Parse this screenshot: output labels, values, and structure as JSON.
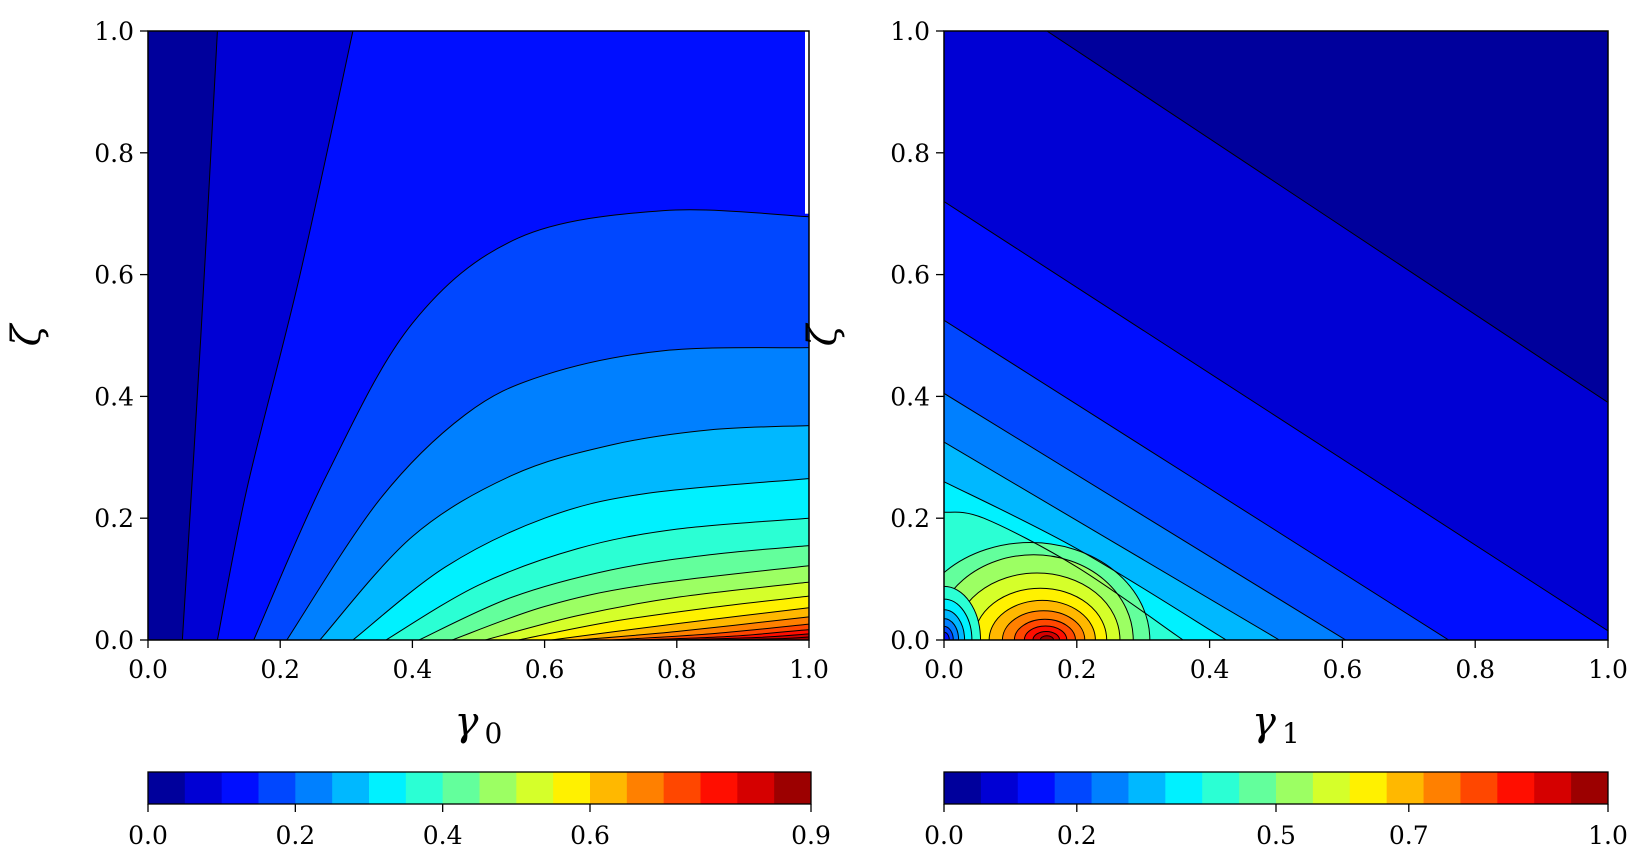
{
  "chart_data": [
    {
      "type": "contourf",
      "colormap": "jet",
      "xlabel": "γ",
      "xlabel_subscript": "0",
      "ylabel": "ζ",
      "xlim": [
        0.0,
        1.0
      ],
      "ylim": [
        0.0,
        1.0
      ],
      "xticks": [
        "0.0",
        "0.2",
        "0.4",
        "0.6",
        "0.8",
        "1.0"
      ],
      "yticks": [
        "0.0",
        "0.2",
        "0.4",
        "0.6",
        "0.8",
        "1.0"
      ],
      "colorbar": {
        "orientation": "horizontal",
        "min": 0.0,
        "max": 0.9,
        "levels": 18,
        "ticks": [
          "0.0",
          "0.2",
          "0.4",
          "0.6",
          "0.9"
        ]
      },
      "contours": [
        {
          "level": 0.05,
          "points": [
            [
              0.052,
              0.0
            ],
            [
              0.08,
              0.5
            ],
            [
              0.105,
              1.0
            ]
          ]
        },
        {
          "level": 0.1,
          "points": [
            [
              0.105,
              0.0
            ],
            [
              0.15,
              0.25
            ],
            [
              0.23,
              0.6
            ],
            [
              0.31,
              1.0
            ]
          ]
        },
        {
          "level": 0.15,
          "points": [
            [
              0.16,
              0.0
            ],
            [
              0.27,
              0.27
            ],
            [
              0.4,
              0.52
            ],
            [
              0.56,
              0.66
            ],
            [
              0.78,
              0.705
            ],
            [
              1.0,
              0.695
            ]
          ]
        },
        {
          "level": 0.2,
          "points": [
            [
              0.21,
              0.0
            ],
            [
              0.35,
              0.23
            ],
            [
              0.48,
              0.37
            ],
            [
              0.6,
              0.435
            ],
            [
              0.78,
              0.475
            ],
            [
              1.0,
              0.48
            ]
          ]
        },
        {
          "level": 0.25,
          "points": [
            [
              0.26,
              0.0
            ],
            [
              0.4,
              0.17
            ],
            [
              0.55,
              0.27
            ],
            [
              0.7,
              0.32
            ],
            [
              0.85,
              0.345
            ],
            [
              1.0,
              0.352
            ]
          ]
        },
        {
          "level": 0.3,
          "points": [
            [
              0.31,
              0.0
            ],
            [
              0.45,
              0.12
            ],
            [
              0.6,
              0.2
            ],
            [
              0.75,
              0.24
            ],
            [
              1.0,
              0.265
            ]
          ]
        },
        {
          "level": 0.35,
          "points": [
            [
              0.36,
              0.0
            ],
            [
              0.5,
              0.09
            ],
            [
              0.65,
              0.15
            ],
            [
              0.8,
              0.182
            ],
            [
              1.0,
              0.2
            ]
          ]
        },
        {
          "level": 0.4,
          "points": [
            [
              0.41,
              0.0
            ],
            [
              0.55,
              0.07
            ],
            [
              0.7,
              0.115
            ],
            [
              0.85,
              0.14
            ],
            [
              1.0,
              0.155
            ]
          ]
        },
        {
          "level": 0.45,
          "points": [
            [
              0.46,
              0.0
            ],
            [
              0.6,
              0.055
            ],
            [
              0.75,
              0.09
            ],
            [
              1.0,
              0.122
            ]
          ]
        },
        {
          "level": 0.5,
          "points": [
            [
              0.51,
              0.0
            ],
            [
              0.65,
              0.04
            ],
            [
              0.8,
              0.07
            ],
            [
              1.0,
              0.095
            ]
          ]
        },
        {
          "level": 0.55,
          "points": [
            [
              0.56,
              0.0
            ],
            [
              0.7,
              0.03
            ],
            [
              0.85,
              0.053
            ],
            [
              1.0,
              0.072
            ]
          ]
        },
        {
          "level": 0.6,
          "points": [
            [
              0.61,
              0.0
            ],
            [
              0.75,
              0.02
            ],
            [
              0.9,
              0.04
            ],
            [
              1.0,
              0.053
            ]
          ]
        },
        {
          "level": 0.65,
          "points": [
            [
              0.65,
              0.0
            ],
            [
              0.8,
              0.014
            ],
            [
              1.0,
              0.038
            ]
          ]
        },
        {
          "level": 0.7,
          "points": [
            [
              0.7,
              0.0
            ],
            [
              0.85,
              0.01
            ],
            [
              1.0,
              0.026
            ]
          ]
        },
        {
          "level": 0.75,
          "points": [
            [
              0.74,
              0.0
            ],
            [
              0.88,
              0.006
            ],
            [
              1.0,
              0.017
            ]
          ]
        },
        {
          "level": 0.8,
          "points": [
            [
              0.79,
              0.0
            ],
            [
              0.92,
              0.004
            ],
            [
              1.0,
              0.01
            ]
          ]
        },
        {
          "level": 0.85,
          "points": [
            [
              0.84,
              0.0
            ],
            [
              0.95,
              0.002
            ],
            [
              1.0,
              0.005
            ]
          ]
        }
      ]
    },
    {
      "type": "contourf",
      "colormap": "jet",
      "xlabel": "γ",
      "xlabel_subscript": "1",
      "ylabel": "ζ",
      "xlim": [
        0.0,
        1.0
      ],
      "ylim": [
        0.0,
        1.0
      ],
      "xticks": [
        "0.0",
        "0.2",
        "0.4",
        "0.6",
        "0.8",
        "1.0"
      ],
      "yticks": [
        "0.0",
        "0.2",
        "0.4",
        "0.6",
        "0.8",
        "1.0"
      ],
      "colorbar": {
        "orientation": "horizontal",
        "min": 0.0,
        "max": 1.0,
        "levels": 18,
        "ticks": [
          "0.0",
          "0.2",
          "0.5",
          "0.7",
          "1.0"
        ]
      },
      "peak": {
        "x": 0.155,
        "y": 0.01,
        "value": 1.0
      },
      "contours": [
        {
          "level": 0.056,
          "points": [
            [
              0.155,
              1.0
            ],
            [
              1.0,
              0.39
            ]
          ]
        },
        {
          "level": 0.111,
          "points": [
            [
              0.0,
              0.72
            ],
            [
              1.0,
              0.015
            ]
          ]
        },
        {
          "level": 0.167,
          "points": [
            [
              0.0,
              0.525
            ],
            [
              0.76,
              0.0
            ]
          ]
        },
        {
          "level": 0.222,
          "points": [
            [
              0.0,
              0.405
            ],
            [
              0.605,
              0.0
            ]
          ]
        },
        {
          "level": 0.278,
          "points": [
            [
              0.0,
              0.325
            ],
            [
              0.505,
              0.0
            ]
          ]
        },
        {
          "level": 0.333,
          "points": [
            [
              0.0,
              0.26
            ],
            [
              0.2,
              0.15
            ],
            [
              0.425,
              0.0
            ]
          ]
        },
        {
          "level": 0.389,
          "points": [
            [
              0.0,
              0.21
            ],
            [
              0.06,
              0.2
            ],
            [
              0.2,
              0.12
            ],
            [
              0.36,
              0.0
            ]
          ]
        }
      ],
      "closed_contours": [
        {
          "level": 0.444,
          "cx": 0.13,
          "cy": 0.0,
          "rx": 0.18,
          "ry": 0.16
        },
        {
          "level": 0.5,
          "cx": 0.135,
          "cy": 0.0,
          "rx": 0.15,
          "ry": 0.14
        },
        {
          "level": 0.556,
          "cx": 0.14,
          "cy": 0.0,
          "rx": 0.125,
          "ry": 0.11
        },
        {
          "level": 0.611,
          "cx": 0.145,
          "cy": 0.0,
          "rx": 0.1,
          "ry": 0.085
        },
        {
          "level": 0.667,
          "cx": 0.148,
          "cy": 0.0,
          "rx": 0.08,
          "ry": 0.065
        },
        {
          "level": 0.722,
          "cx": 0.15,
          "cy": 0.0,
          "rx": 0.062,
          "ry": 0.048
        },
        {
          "level": 0.778,
          "cx": 0.152,
          "cy": 0.0,
          "rx": 0.046,
          "ry": 0.034
        },
        {
          "level": 0.833,
          "cx": 0.153,
          "cy": 0.0,
          "rx": 0.032,
          "ry": 0.023
        },
        {
          "level": 0.889,
          "cx": 0.154,
          "cy": 0.0,
          "rx": 0.02,
          "ry": 0.014
        },
        {
          "level": 0.944,
          "cx": 0.155,
          "cy": 0.0,
          "rx": 0.01,
          "ry": 0.007
        }
      ],
      "low_corner_contours": [
        {
          "level": 0.389,
          "r": 0.055
        },
        {
          "level": 0.333,
          "r": 0.042
        },
        {
          "level": 0.278,
          "r": 0.031
        },
        {
          "level": 0.222,
          "r": 0.022
        },
        {
          "level": 0.167,
          "r": 0.014
        },
        {
          "level": 0.111,
          "r": 0.008
        }
      ]
    }
  ]
}
